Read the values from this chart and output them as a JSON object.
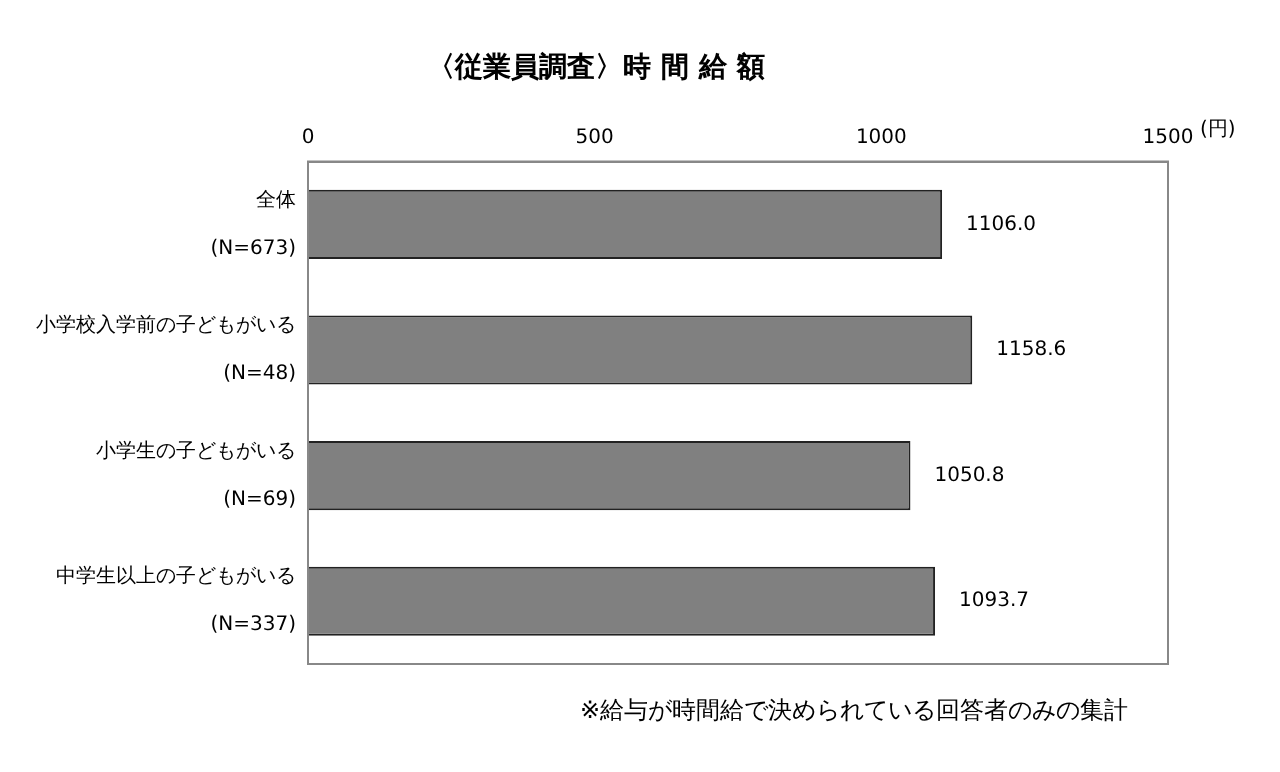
{
  "chart_data": {
    "type": "bar",
    "orientation": "horizontal",
    "title": "〈従業員調査〉時 間 給 額",
    "xlabel": "(円)",
    "categories": [
      "全体\n(N=673)",
      "小学校入学前の子どもがいる\n(N=48)",
      "小学生の子どもがいる\n(N=69)",
      "中学生以上の子どもがいる\n(N=337)"
    ],
    "values": [
      1106.0,
      1158.6,
      1050.8,
      1093.7
    ],
    "value_labels": [
      "1106.0",
      "1158.6",
      "1050.8",
      "1093.7"
    ],
    "color": "#808080",
    "xlim": [
      0,
      1500
    ],
    "xticks": [
      0,
      500,
      1000,
      1500
    ],
    "grid": false,
    "legend": false,
    "annotations": [
      "※給与が時間給で決められている回答者のみの集計"
    ]
  }
}
